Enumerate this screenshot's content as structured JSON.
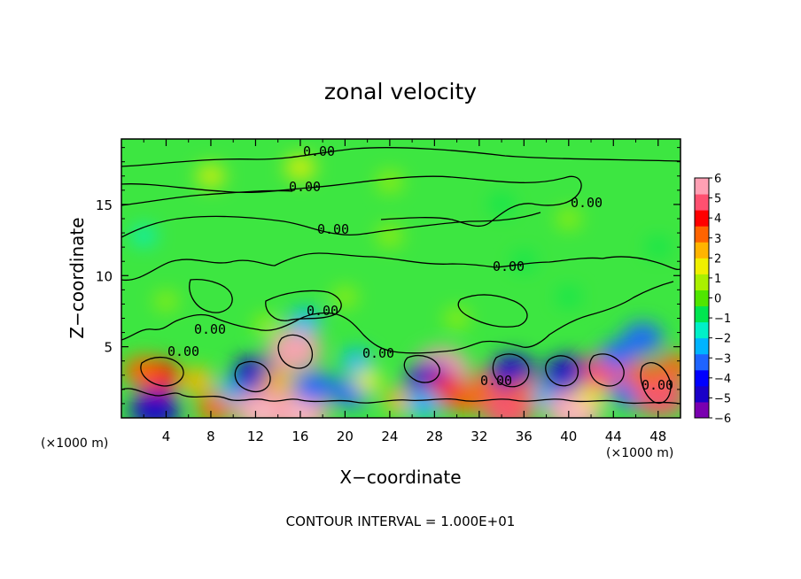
{
  "chart_data": {
    "type": "heatmap",
    "title": "zonal velocity",
    "xlabel": "X−coordinate",
    "ylabel": "Z−coordinate",
    "x_unit_left": "(×1000 m)",
    "x_unit_right": "(×1000 m)",
    "xlim": [
      0,
      50
    ],
    "ylim": [
      0,
      19.6
    ],
    "x_ticks": [
      4,
      8,
      12,
      16,
      20,
      24,
      28,
      32,
      36,
      40,
      44,
      48
    ],
    "y_ticks": [
      5,
      10,
      15
    ],
    "footnote": "CONTOUR INTERVAL = 1.000E+01",
    "contour_labels": [
      "0.00",
      "0.00",
      "0.00",
      "0.00",
      "0.00",
      "0.00",
      "0.00",
      "0.00",
      "0.00",
      "0.00",
      "0.00"
    ],
    "colorbar": {
      "min": -6,
      "max": 6,
      "ticks": [
        "6",
        "5",
        "4",
        "3",
        "2",
        "1",
        "0",
        "−1",
        "−2",
        "−3",
        "−4",
        "−5",
        "−6"
      ],
      "colors": [
        "#7a00b0",
        "#1a00c8",
        "#0000ff",
        "#1e64ff",
        "#00b4ff",
        "#00f0c8",
        "#00e650",
        "#50e600",
        "#aaf000",
        "#f0f000",
        "#ffb400",
        "#ff6400",
        "#ff0000",
        "#ff5070",
        "#ffa0b4"
      ]
    },
    "blobs": [
      {
        "x": 3.2,
        "z": 2.9,
        "v": 4.6
      },
      {
        "x": 1.8,
        "z": 3.3,
        "v": 3.2
      },
      {
        "x": 6.8,
        "z": 2.6,
        "v": 2.6
      },
      {
        "x": 3.0,
        "z": 0.6,
        "v": -5.2
      },
      {
        "x": 8.4,
        "z": 0.7,
        "v": 3.2
      },
      {
        "x": 10.2,
        "z": 2.0,
        "v": -2.8
      },
      {
        "x": 12.0,
        "z": 3.0,
        "v": -5.0
      },
      {
        "x": 12.6,
        "z": 0.5,
        "v": 5.8
      },
      {
        "x": 15.5,
        "z": 4.8,
        "v": 5.6
      },
      {
        "x": 14.0,
        "z": 2.6,
        "v": 2.4
      },
      {
        "x": 16.0,
        "z": 0.4,
        "v": 6.0
      },
      {
        "x": 17.2,
        "z": 2.2,
        "v": -3.8
      },
      {
        "x": 16.4,
        "z": 6.8,
        "v": -2.5
      },
      {
        "x": 20.5,
        "z": 1.8,
        "v": -3.5
      },
      {
        "x": 22.0,
        "z": 2.6,
        "v": 2.0
      },
      {
        "x": 21.0,
        "z": 4.0,
        "v": -2.2
      },
      {
        "x": 25.0,
        "z": 1.2,
        "v": 2.6
      },
      {
        "x": 28.6,
        "z": 3.4,
        "v": 6.0
      },
      {
        "x": 27.6,
        "z": 2.5,
        "v": -5.5
      },
      {
        "x": 29.0,
        "z": 1.8,
        "v": 4.0
      },
      {
        "x": 27.0,
        "z": 1.0,
        "v": -3.0
      },
      {
        "x": 31.0,
        "z": 1.3,
        "v": 3.0
      },
      {
        "x": 33.0,
        "z": 2.4,
        "v": 3.6
      },
      {
        "x": 35.0,
        "z": 3.2,
        "v": -4.8
      },
      {
        "x": 34.6,
        "z": 0.5,
        "v": 5.2
      },
      {
        "x": 36.4,
        "z": 1.8,
        "v": 3.0
      },
      {
        "x": 38.2,
        "z": 1.6,
        "v": -2.8
      },
      {
        "x": 40.0,
        "z": 3.0,
        "v": -5.4
      },
      {
        "x": 40.5,
        "z": 0.5,
        "v": 6.0
      },
      {
        "x": 42.0,
        "z": 1.6,
        "v": 2.0
      },
      {
        "x": 43.2,
        "z": 3.2,
        "v": 4.8
      },
      {
        "x": 44.4,
        "z": 4.4,
        "v": -3.2
      },
      {
        "x": 45.6,
        "z": 1.8,
        "v": -3.8
      },
      {
        "x": 46.6,
        "z": 5.6,
        "v": -3.8
      },
      {
        "x": 48.2,
        "z": 1.5,
        "v": 5.4
      },
      {
        "x": 46.5,
        "z": 3.0,
        "v": 3.0
      },
      {
        "x": 49.5,
        "z": 3.6,
        "v": 3.0
      },
      {
        "x": 13.0,
        "z": 6.5,
        "v": 1.2
      },
      {
        "x": 8.0,
        "z": 17.0,
        "v": 1.6
      },
      {
        "x": 16.0,
        "z": 17.6,
        "v": 2.0
      },
      {
        "x": 24.0,
        "z": 16.6,
        "v": 1.2
      },
      {
        "x": 34.0,
        "z": 15.0,
        "v": -1.0
      },
      {
        "x": 40.0,
        "z": 14.0,
        "v": 1.0
      },
      {
        "x": 2.0,
        "z": 12.8,
        "v": -1.3
      },
      {
        "x": 24.0,
        "z": 12.8,
        "v": 1.2
      },
      {
        "x": 36.0,
        "z": 11.0,
        "v": -0.8
      },
      {
        "x": 20.0,
        "z": 8.5,
        "v": 1.0
      },
      {
        "x": 30.0,
        "z": 7.0,
        "v": 1.0
      },
      {
        "x": 40.0,
        "z": 8.5,
        "v": -0.8
      },
      {
        "x": 48.0,
        "z": 12.0,
        "v": -0.8
      },
      {
        "x": 4.0,
        "z": 8.2,
        "v": 0.8
      }
    ]
  }
}
